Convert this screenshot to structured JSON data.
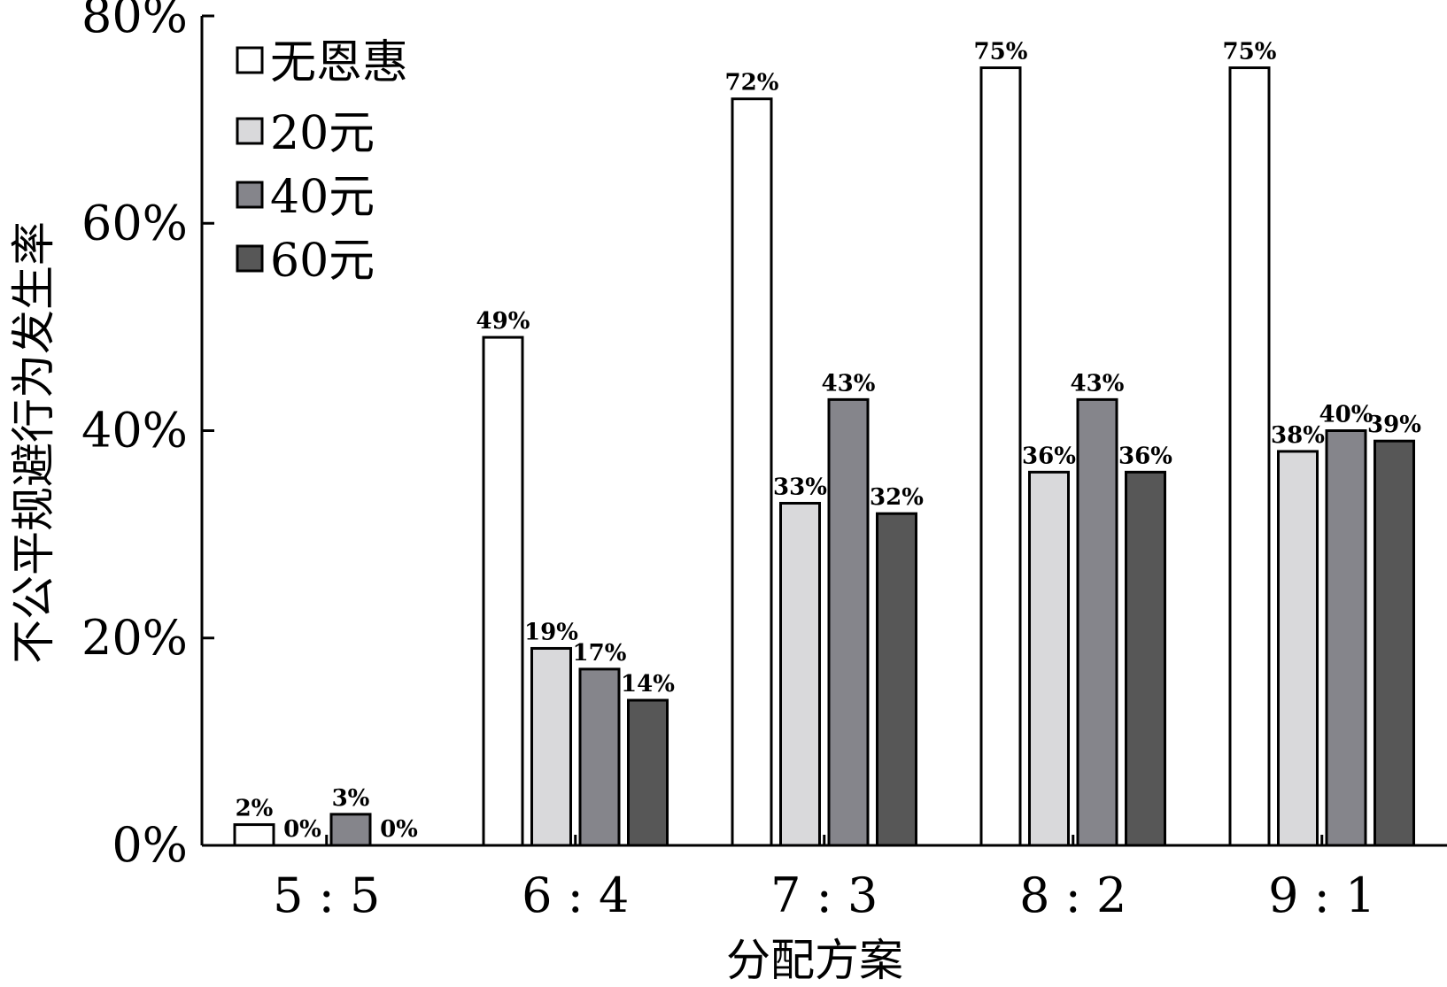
{
  "chart_data": {
    "type": "bar",
    "title": "",
    "xlabel": "分配方案",
    "ylabel": "不公平规避行为发生率",
    "categories": [
      "5 : 5",
      "6 : 4",
      "7 : 3",
      "8 : 2",
      "9 : 1"
    ],
    "yticks": [
      "0%",
      "20%",
      "40%",
      "60%",
      "80%"
    ],
    "ylim": [
      0,
      80
    ],
    "legend_position": "top-left",
    "series": [
      {
        "name": "无恩惠",
        "color": "#ffffff",
        "values": [
          2,
          49,
          72,
          75,
          75
        ],
        "labels": [
          "2%",
          "49%",
          "72%",
          "75%",
          "75%"
        ]
      },
      {
        "name": "20元",
        "color": "#d9d9db",
        "values": [
          0,
          19,
          33,
          36,
          38
        ],
        "labels": [
          "0%",
          "19%",
          "33%",
          "36%",
          "38%"
        ]
      },
      {
        "name": "40元",
        "color": "#85858b",
        "values": [
          3,
          17,
          43,
          43,
          40
        ],
        "labels": [
          "3%",
          "17%",
          "43%",
          "43%",
          "40%"
        ]
      },
      {
        "name": "60元",
        "color": "#575757",
        "values": [
          0,
          14,
          32,
          36,
          39
        ],
        "labels": [
          "0%",
          "14%",
          "32%",
          "36%",
          "39%"
        ]
      }
    ]
  }
}
